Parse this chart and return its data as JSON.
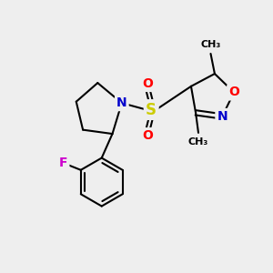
{
  "bg_color": "#eeeeee",
  "atom_colors": {
    "C": "#000000",
    "N": "#0000cc",
    "O": "#ff0000",
    "S": "#cccc00",
    "F": "#cc00cc"
  },
  "bond_color": "#000000",
  "bond_width": 1.5,
  "figsize": [
    3.0,
    3.0
  ],
  "dpi": 100,
  "xlim": [
    0,
    10
  ],
  "ylim": [
    0,
    10
  ]
}
